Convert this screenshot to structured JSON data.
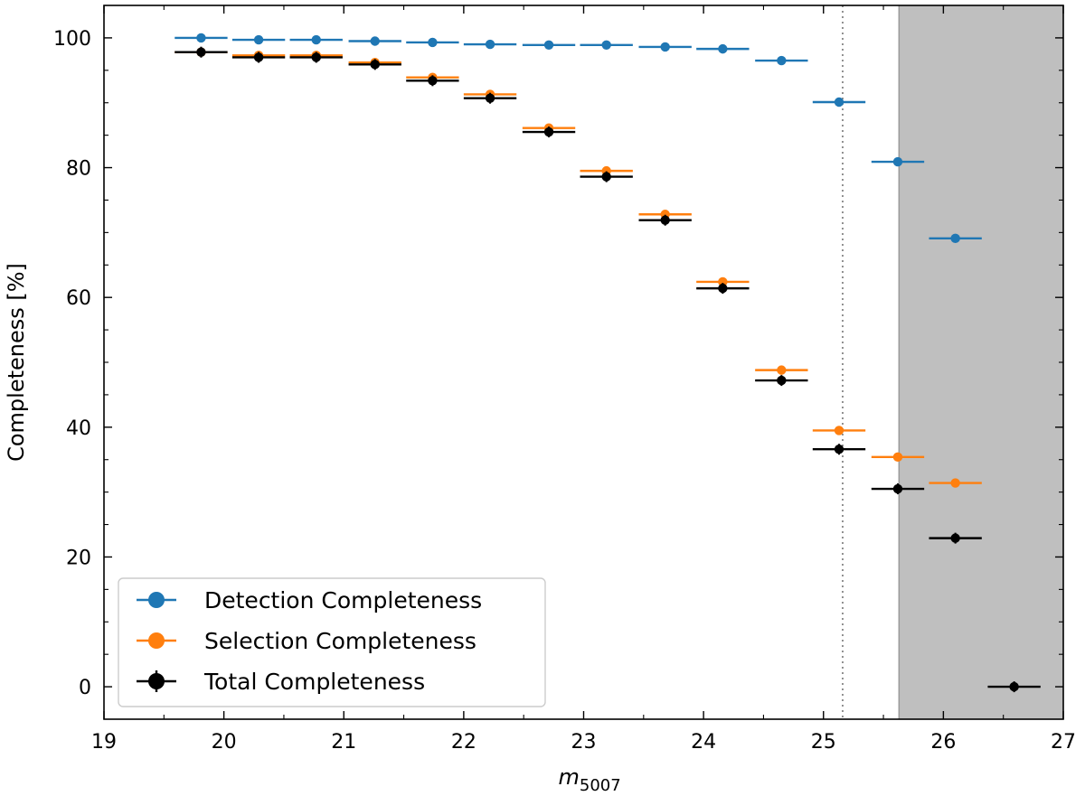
{
  "chart_data": {
    "type": "scatter",
    "title": "",
    "xlabel": "m",
    "xlabel_subscript": "5007",
    "ylabel": "Completeness [%]",
    "xlim": [
      19,
      27
    ],
    "ylim": [
      -5,
      105
    ],
    "xticks": [
      19,
      20,
      21,
      22,
      23,
      24,
      25,
      26,
      27
    ],
    "xtick_labels": [
      "19",
      "20",
      "21",
      "22",
      "23",
      "24",
      "25",
      "26",
      "27"
    ],
    "yticks": [
      0,
      20,
      40,
      60,
      80,
      100
    ],
    "ytick_labels": [
      "0",
      "20",
      "40",
      "60",
      "80",
      "100"
    ],
    "bin_half_width": 0.22,
    "vertical_dotted_line_x": 25.16,
    "shaded_region_x": [
      25.63,
      27
    ],
    "shaded_color": "#bfbfbf",
    "legend_position": "lower-left",
    "series": [
      {
        "name": "Detection Completeness",
        "color": "#1f77b4",
        "x": [
          19.81,
          20.29,
          20.77,
          21.26,
          21.74,
          22.22,
          22.71,
          23.19,
          23.68,
          24.16,
          24.65,
          25.13,
          25.62,
          26.1
        ],
        "values": [
          100,
          99.7,
          99.7,
          99.5,
          99.3,
          99.0,
          98.9,
          98.9,
          98.6,
          98.3,
          96.5,
          90.1,
          80.9,
          69.1
        ]
      },
      {
        "name": "Selection Completeness",
        "color": "#ff7f0e",
        "x": [
          19.81,
          20.29,
          20.77,
          21.26,
          21.74,
          22.22,
          22.71,
          23.19,
          23.68,
          24.16,
          24.65,
          25.13,
          25.62,
          26.1
        ],
        "values": [
          97.8,
          97.3,
          97.3,
          96.2,
          93.9,
          91.3,
          86.1,
          79.5,
          72.8,
          62.4,
          48.8,
          39.5,
          35.4,
          31.4
        ]
      },
      {
        "name": "Total Completeness",
        "color": "#000000",
        "x": [
          19.81,
          20.29,
          20.77,
          21.26,
          21.74,
          22.22,
          22.71,
          23.19,
          23.68,
          24.16,
          24.65,
          25.13,
          25.62,
          26.1,
          26.59
        ],
        "values": [
          97.8,
          97.0,
          97.0,
          95.9,
          93.4,
          90.7,
          85.5,
          78.6,
          71.9,
          61.4,
          47.2,
          36.6,
          30.5,
          22.9,
          0
        ]
      }
    ]
  }
}
